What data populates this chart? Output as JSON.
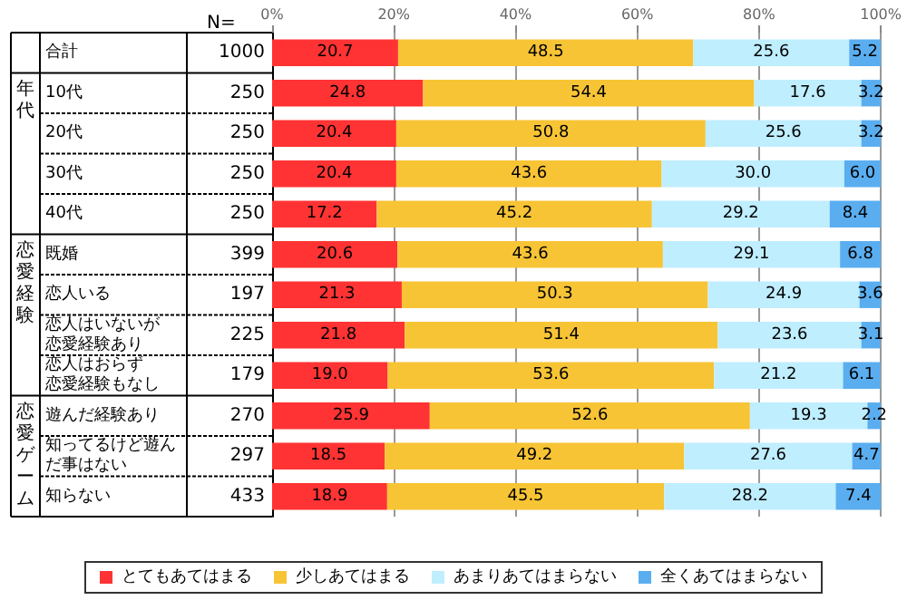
{
  "chart_data": {
    "type": "bar",
    "orientation": "horizontal",
    "stacked": true,
    "categories": [
      "合計",
      "10代",
      "20代",
      "30代",
      "40代",
      "既婚",
      "恋人いる",
      "恋人はいないが恋愛経験あり",
      "恋人はおらず恋愛経験もなし",
      "遊んだ経験あり",
      "知ってるけど遊んだ事はない",
      "知らない"
    ],
    "series": [
      {
        "name": "とてもあてはまる",
        "color": "#ff3333",
        "values": [
          20.7,
          24.8,
          20.4,
          20.4,
          17.2,
          20.6,
          21.3,
          21.8,
          19.0,
          25.9,
          18.5,
          18.9
        ],
        "value_labels": [
          "20.7",
          "24.8",
          "20.4",
          "20.4",
          "17.2",
          "20.6",
          "21.3",
          "21.8",
          "19.0",
          "25.9",
          "18.5",
          "18.9"
        ]
      },
      {
        "name": "少しあてはまる",
        "color": "#f7c435",
        "values": [
          48.5,
          54.4,
          50.8,
          43.6,
          45.2,
          43.6,
          50.3,
          51.4,
          53.6,
          52.6,
          49.2,
          45.5
        ],
        "value_labels": [
          "48.5",
          "54.4",
          "50.8",
          "43.6",
          "45.2",
          "43.6",
          "50.3",
          "51.4",
          "53.6",
          "52.6",
          "49.2",
          "45.5"
        ]
      },
      {
        "name": "あまりあてはまらない",
        "color": "#bfeeff",
        "values": [
          25.6,
          17.6,
          25.6,
          30.0,
          29.2,
          29.1,
          24.9,
          23.6,
          21.2,
          19.3,
          27.6,
          28.2
        ],
        "value_labels": [
          "25.6",
          "17.6",
          "25.6",
          "30.0",
          "29.2",
          "29.1",
          "24.9",
          "23.6",
          "21.2",
          "19.3",
          "27.6",
          "28.2"
        ]
      },
      {
        "name": "全くあてはまらない",
        "color": "#5aaef0",
        "values": [
          5.2,
          3.2,
          3.2,
          6.0,
          8.4,
          6.8,
          3.6,
          3.1,
          6.1,
          2.2,
          4.7,
          7.4
        ],
        "value_labels": [
          "5.2",
          "3.2",
          "3.2",
          "6.0",
          "8.4",
          "6.8",
          "3.6",
          "3.1",
          "6.1",
          "2.2",
          "4.7",
          "7.4"
        ]
      }
    ],
    "xlim": [
      0,
      100
    ],
    "xticks": [
      {
        "value": 0,
        "label": "0%"
      },
      {
        "value": 20,
        "label": "20%"
      },
      {
        "value": 40,
        "label": "40%"
      },
      {
        "value": 60,
        "label": "60%"
      },
      {
        "value": 80,
        "label": "80%"
      },
      {
        "value": 100,
        "label": "100%"
      }
    ],
    "grid": "x",
    "legend": "bottom",
    "annotations": [
      "N=",
      "1000",
      "250",
      "250",
      "250",
      "250",
      "399",
      "197",
      "225",
      "179",
      "270",
      "297",
      "433",
      "年代",
      "恋愛経験",
      "恋愛ゲーム"
    ]
  }
}
